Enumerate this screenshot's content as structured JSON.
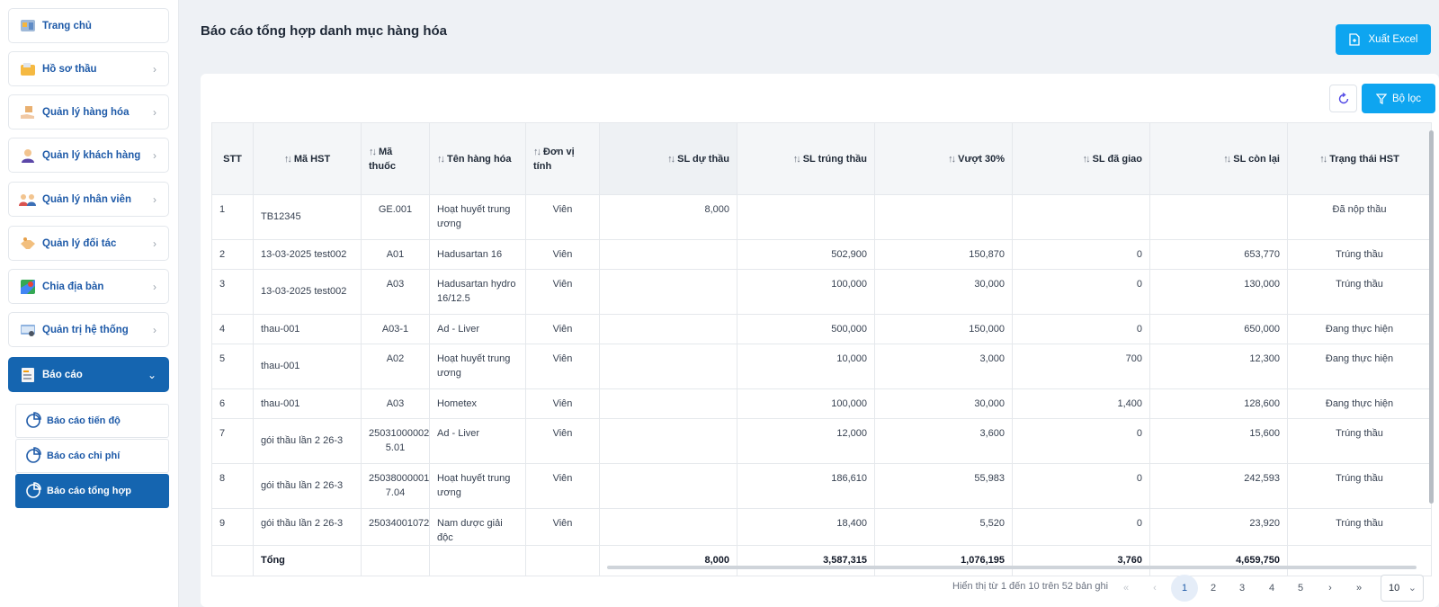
{
  "sidebar": {
    "items": [
      {
        "label": "Trang chủ",
        "icon": "home-icon"
      },
      {
        "label": "Hồ sơ thầu",
        "icon": "folder-icon"
      },
      {
        "label": "Quản lý hàng hóa",
        "icon": "box-hand-icon"
      },
      {
        "label": "Quản lý khách hàng",
        "icon": "customer-icon"
      },
      {
        "label": "Quản lý nhân viên",
        "icon": "staff-icon"
      },
      {
        "label": "Quản lý đối tác",
        "icon": "handshake-icon"
      },
      {
        "label": "Chia địa bàn",
        "icon": "map-icon"
      },
      {
        "label": "Quản trị hệ thống",
        "icon": "system-settings-icon"
      },
      {
        "label": "Báo cáo",
        "icon": "report-icon"
      }
    ],
    "sub_items": [
      {
        "label": "Báo cáo tiến độ"
      },
      {
        "label": "Báo cáo chi phí"
      },
      {
        "label": "Báo cáo tổng hợp"
      }
    ]
  },
  "header": {
    "title": "Báo cáo tổng hợp danh mục hàng hóa",
    "export_label": "Xuất Excel",
    "filter_label": "Bộ lọc"
  },
  "table": {
    "headers": {
      "stt": "STT",
      "ma_hst": "Mã HST",
      "ma_thuoc": "Mã thuốc",
      "ten_hang_hoa": "Tên hàng hóa",
      "don_vi_tinh": "Đơn vị tính",
      "sl_du_thau": "SL dự thầu",
      "sl_trung_thau": "SL trúng thầu",
      "vuot_30": "Vượt 30%",
      "sl_da_giao": "SL đã giao",
      "sl_con_lai": "SL còn lại",
      "trang_thai_hst": "Trạng thái HST"
    },
    "rows": [
      {
        "stt": "1",
        "ma_hst": "TB12345",
        "ma_thuoc": "GE.001",
        "ten": "Hoạt huyết trung ương",
        "dvt": "Viên",
        "du_thau": "8,000",
        "trung_thau": "",
        "vuot": "",
        "da_giao": "",
        "con_lai": "",
        "trang_thai": "Đã nộp thầu"
      },
      {
        "stt": "2",
        "ma_hst": "13-03-2025 test002",
        "ma_thuoc": "A01",
        "ten": "Hadusartan 16",
        "dvt": "Viên",
        "du_thau": "",
        "trung_thau": "502,900",
        "vuot": "150,870",
        "da_giao": "0",
        "con_lai": "653,770",
        "trang_thai": "Trúng thầu"
      },
      {
        "stt": "3",
        "ma_hst": "13-03-2025 test002",
        "ma_thuoc": "A03",
        "ten": "Hadusartan hydro 16/12.5",
        "dvt": "Viên",
        "du_thau": "",
        "trung_thau": "100,000",
        "vuot": "30,000",
        "da_giao": "0",
        "con_lai": "130,000",
        "trang_thai": "Trúng thầu"
      },
      {
        "stt": "4",
        "ma_hst": "thau-001",
        "ma_thuoc": "A03-1",
        "ten": "Ad - Liver",
        "dvt": "Viên",
        "du_thau": "",
        "trung_thau": "500,000",
        "vuot": "150,000",
        "da_giao": "0",
        "con_lai": "650,000",
        "trang_thai": "Đang thực hiện"
      },
      {
        "stt": "5",
        "ma_hst": "thau-001",
        "ma_thuoc": "A02",
        "ten": "Hoạt huyết trung ương",
        "dvt": "Viên",
        "du_thau": "",
        "trung_thau": "10,000",
        "vuot": "3,000",
        "da_giao": "700",
        "con_lai": "12,300",
        "trang_thai": "Đang thực hiện"
      },
      {
        "stt": "6",
        "ma_hst": "thau-001",
        "ma_thuoc": "A03",
        "ten": "Hometex",
        "dvt": "Viên",
        "du_thau": "",
        "trung_thau": "100,000",
        "vuot": "30,000",
        "da_giao": "1,400",
        "con_lai": "128,600",
        "trang_thai": "Đang thực hiện"
      },
      {
        "stt": "7",
        "ma_hst": "gói thầu lần 2 26-3",
        "ma_thuoc": "25031000002 5.01",
        "ten": "Ad - Liver",
        "dvt": "Viên",
        "du_thau": "",
        "trung_thau": "12,000",
        "vuot": "3,600",
        "da_giao": "0",
        "con_lai": "15,600",
        "trang_thai": "Trúng thầu"
      },
      {
        "stt": "8",
        "ma_hst": "gói thầu lần 2 26-3",
        "ma_thuoc": "25038000001 7.04",
        "ten": "Hoạt huyết trung ương",
        "dvt": "Viên",
        "du_thau": "",
        "trung_thau": "186,610",
        "vuot": "55,983",
        "da_giao": "0",
        "con_lai": "242,593",
        "trang_thai": "Trúng thầu"
      },
      {
        "stt": "9",
        "ma_hst": "gói thầu lần 2 26-3",
        "ma_thuoc": "25034001072",
        "ten": "Nam dược giải độc",
        "dvt": "Viên",
        "du_thau": "",
        "trung_thau": "18,400",
        "vuot": "5,520",
        "da_giao": "0",
        "con_lai": "23,920",
        "trang_thai": "Trúng thầu"
      }
    ],
    "totals": {
      "label": "Tổng",
      "du_thau": "8,000",
      "trung_thau": "3,587,315",
      "vuot": "1,076,195",
      "da_giao": "3,760",
      "con_lai": "4,659,750"
    }
  },
  "pagination": {
    "info": "Hiển thị từ 1 đến 10 trên 52 bản ghi",
    "pages": [
      "1",
      "2",
      "3",
      "4",
      "5"
    ],
    "current": "1",
    "page_size": "10"
  },
  "colors": {
    "primary": "#0ea5f0",
    "sidebar_active": "#1565b0",
    "link": "#2e6fb7"
  }
}
